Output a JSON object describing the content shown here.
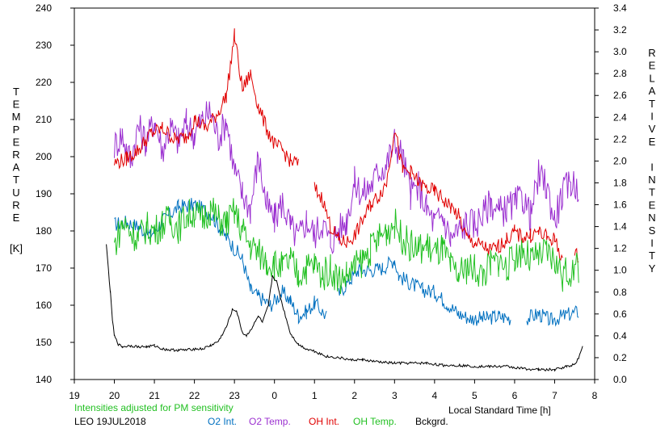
{
  "chart_data": {
    "type": "line",
    "x_ticks": [
      "19",
      "20",
      "21",
      "22",
      "23",
      "0",
      "1",
      "2",
      "3",
      "4",
      "5",
      "6",
      "7",
      "8"
    ],
    "xlabel": "Local Standard Time [h]",
    "left_axis": {
      "label_letters": [
        "T",
        "E",
        "M",
        "P",
        "E",
        "R",
        "A",
        "T",
        "U",
        "R",
        "E"
      ],
      "unit": "[K]",
      "ticks": [
        "140",
        "150",
        "160",
        "170",
        "180",
        "190",
        "200",
        "210",
        "220",
        "230",
        "240"
      ],
      "ylim": [
        140,
        240
      ]
    },
    "right_axis": {
      "label_words": [
        [
          "R",
          "E",
          "L",
          "A",
          "T",
          "I",
          "V",
          "E"
        ],
        [
          "I",
          "N",
          "T",
          "E",
          "N",
          "S",
          "I",
          "T",
          "Y"
        ]
      ],
      "ticks": [
        "0.0",
        "0.2",
        "0.4",
        "0.6",
        "0.8",
        "1.0",
        "1.2",
        "1.4",
        "1.6",
        "1.8",
        "2.0",
        "2.2",
        "2.4",
        "2.6",
        "2.8",
        "3.0",
        "3.2",
        "3.4"
      ],
      "ylim": [
        0,
        3.4
      ]
    },
    "note": "Intensities adjusted for PM sensitivity",
    "station": "LEO 19JUL2018",
    "legend_position": "bottom",
    "series": [
      {
        "name": "O2 Int.",
        "color": "#0070c0",
        "axis": "right",
        "points": [
          [
            20.0,
            1.42
          ],
          [
            20.3,
            1.44
          ],
          [
            20.6,
            1.4
          ],
          [
            20.9,
            1.32
          ],
          [
            21.2,
            1.45
          ],
          [
            21.6,
            1.58
          ],
          [
            22.0,
            1.6
          ],
          [
            22.4,
            1.52
          ],
          [
            22.7,
            1.35
          ],
          [
            22.9,
            1.25
          ],
          [
            23.2,
            1.1
          ],
          [
            23.4,
            0.82
          ],
          [
            23.6,
            0.76
          ],
          [
            23.9,
            0.68
          ],
          [
            24.2,
            0.8
          ],
          [
            24.4,
            0.72
          ],
          [
            24.6,
            0.58
          ],
          [
            24.8,
            0.62
          ],
          [
            25.0,
            0.7
          ],
          [
            25.3,
            0.58
          ],
          [
            25.5,
            null
          ],
          [
            25.6,
            0.78
          ],
          [
            25.9,
            0.92
          ],
          [
            26.1,
            1.0
          ],
          [
            26.4,
            1.0
          ],
          [
            26.7,
            1.02
          ],
          [
            27.0,
            1.1
          ],
          [
            27.1,
            0.95
          ],
          [
            27.4,
            0.88
          ],
          [
            27.7,
            0.82
          ],
          [
            28.0,
            0.8
          ],
          [
            28.3,
            0.7
          ],
          [
            28.6,
            0.6
          ],
          [
            28.9,
            0.56
          ],
          [
            29.3,
            0.56
          ],
          [
            29.6,
            0.58
          ],
          [
            29.9,
            0.56
          ],
          [
            30.1,
            null
          ],
          [
            30.3,
            0.56
          ],
          [
            30.6,
            0.6
          ],
          [
            30.9,
            0.54
          ],
          [
            31.2,
            0.58
          ],
          [
            31.6,
            0.62
          ]
        ]
      },
      {
        "name": "O2 Temp.",
        "color": "#9b30d0",
        "axis": "left",
        "points": [
          [
            20.0,
            203
          ],
          [
            20.2,
            206
          ],
          [
            20.4,
            199
          ],
          [
            20.6,
            208
          ],
          [
            20.8,
            204
          ],
          [
            21.0,
            210
          ],
          [
            21.2,
            202
          ],
          [
            21.4,
            208
          ],
          [
            21.6,
            204
          ],
          [
            21.8,
            209
          ],
          [
            22.0,
            206
          ],
          [
            22.2,
            210
          ],
          [
            22.4,
            212
          ],
          [
            22.6,
            205
          ],
          [
            22.8,
            210
          ],
          [
            23.0,
            196
          ],
          [
            23.2,
            190
          ],
          [
            23.4,
            186
          ],
          [
            23.6,
            200
          ],
          [
            23.8,
            187
          ],
          [
            24.0,
            183
          ],
          [
            24.2,
            188
          ],
          [
            24.4,
            181
          ],
          [
            24.6,
            178
          ],
          [
            24.8,
            183
          ],
          [
            25.0,
            179
          ],
          [
            25.2,
            182
          ],
          [
            25.4,
            177
          ],
          [
            25.6,
            180
          ],
          [
            25.8,
            183
          ],
          [
            26.0,
            193
          ],
          [
            26.2,
            190
          ],
          [
            26.4,
            192
          ],
          [
            26.6,
            196
          ],
          [
            26.8,
            198
          ],
          [
            27.0,
            204
          ],
          [
            27.2,
            200
          ],
          [
            27.4,
            190
          ],
          [
            27.6,
            192
          ],
          [
            27.8,
            186
          ],
          [
            28.0,
            182
          ],
          [
            28.2,
            184
          ],
          [
            28.4,
            178
          ],
          [
            28.6,
            180
          ],
          [
            28.8,
            182
          ],
          [
            29.0,
            182
          ],
          [
            29.2,
            184
          ],
          [
            29.4,
            188
          ],
          [
            29.6,
            185
          ],
          [
            29.8,
            186
          ],
          [
            30.0,
            187
          ],
          [
            30.2,
            189
          ],
          [
            30.4,
            184
          ],
          [
            30.6,
            195
          ],
          [
            30.8,
            192
          ],
          [
            31.0,
            183
          ],
          [
            31.2,
            190
          ],
          [
            31.4,
            193
          ],
          [
            31.6,
            192
          ]
        ]
      },
      {
        "name": "OH Int.",
        "color": "#e00000",
        "axis": "right",
        "points": [
          [
            20.0,
            1.98
          ],
          [
            20.3,
            2.02
          ],
          [
            20.6,
            2.1
          ],
          [
            20.9,
            2.25
          ],
          [
            21.2,
            2.3
          ],
          [
            21.5,
            2.2
          ],
          [
            21.8,
            2.22
          ],
          [
            22.0,
            2.38
          ],
          [
            22.3,
            2.3
          ],
          [
            22.6,
            2.45
          ],
          [
            22.8,
            2.6
          ],
          [
            23.0,
            3.15
          ],
          [
            23.2,
            2.65
          ],
          [
            23.4,
            2.8
          ],
          [
            23.6,
            2.5
          ],
          [
            23.8,
            2.3
          ],
          [
            24.0,
            2.15
          ],
          [
            24.2,
            2.1
          ],
          [
            24.4,
            2.0
          ],
          [
            24.6,
            1.98
          ],
          [
            24.8,
            null
          ],
          [
            25.0,
            1.75
          ],
          [
            25.2,
            1.65
          ],
          [
            25.4,
            1.4
          ],
          [
            25.6,
            1.28
          ],
          [
            25.8,
            1.25
          ],
          [
            26.0,
            1.32
          ],
          [
            26.2,
            1.45
          ],
          [
            26.4,
            1.6
          ],
          [
            26.6,
            1.68
          ],
          [
            26.8,
            1.8
          ],
          [
            27.0,
            2.3
          ],
          [
            27.2,
            1.92
          ],
          [
            27.4,
            1.9
          ],
          [
            27.6,
            1.8
          ],
          [
            27.8,
            1.75
          ],
          [
            28.0,
            1.72
          ],
          [
            28.2,
            1.65
          ],
          [
            28.4,
            1.58
          ],
          [
            28.6,
            1.5
          ],
          [
            28.8,
            1.3
          ],
          [
            29.0,
            1.25
          ],
          [
            29.2,
            1.22
          ],
          [
            29.4,
            1.18
          ],
          [
            29.6,
            1.22
          ],
          [
            29.8,
            1.28
          ],
          [
            30.0,
            1.35
          ],
          [
            30.2,
            1.3
          ],
          [
            30.4,
            1.32
          ],
          [
            30.6,
            1.35
          ],
          [
            30.8,
            1.3
          ],
          [
            31.0,
            1.28
          ],
          [
            31.2,
            1.1
          ],
          [
            31.3,
            null
          ],
          [
            31.5,
            1.12
          ],
          [
            31.6,
            1.15
          ]
        ]
      },
      {
        "name": "OH Temp.",
        "color": "#22c022",
        "axis": "left",
        "points": [
          [
            20.0,
            176
          ],
          [
            20.2,
            182
          ],
          [
            20.4,
            180
          ],
          [
            20.6,
            178
          ],
          [
            20.8,
            181
          ],
          [
            21.0,
            180
          ],
          [
            21.2,
            182
          ],
          [
            21.4,
            183
          ],
          [
            21.6,
            181
          ],
          [
            21.8,
            184
          ],
          [
            22.0,
            185
          ],
          [
            22.2,
            183
          ],
          [
            22.4,
            186
          ],
          [
            22.6,
            183
          ],
          [
            22.8,
            182
          ],
          [
            23.0,
            185
          ],
          [
            23.2,
            180
          ],
          [
            23.4,
            176
          ],
          [
            23.6,
            174
          ],
          [
            23.8,
            172
          ],
          [
            24.0,
            171
          ],
          [
            24.2,
            170
          ],
          [
            24.4,
            172
          ],
          [
            24.6,
            168
          ],
          [
            24.8,
            170
          ],
          [
            25.0,
            171
          ],
          [
            25.2,
            168
          ],
          [
            25.4,
            170
          ],
          [
            25.6,
            167
          ],
          [
            25.8,
            168
          ],
          [
            26.0,
            170
          ],
          [
            26.2,
            172
          ],
          [
            26.4,
            175
          ],
          [
            26.6,
            178
          ],
          [
            26.8,
            180
          ],
          [
            27.0,
            182
          ],
          [
            27.2,
            178
          ],
          [
            27.4,
            176
          ],
          [
            27.6,
            175
          ],
          [
            27.8,
            176
          ],
          [
            28.0,
            174
          ],
          [
            28.2,
            175
          ],
          [
            28.4,
            170
          ],
          [
            28.6,
            168
          ],
          [
            28.8,
            170
          ],
          [
            29.0,
            170
          ],
          [
            29.2,
            168
          ],
          [
            29.4,
            171
          ],
          [
            29.6,
            172
          ],
          [
            29.8,
            170
          ],
          [
            30.0,
            173
          ],
          [
            30.2,
            175
          ],
          [
            30.4,
            172
          ],
          [
            30.6,
            173
          ],
          [
            30.8,
            174
          ],
          [
            31.0,
            172
          ],
          [
            31.2,
            168
          ],
          [
            31.4,
            169
          ],
          [
            31.6,
            170
          ]
        ]
      },
      {
        "name": "Bckgrd.",
        "color": "#000000",
        "axis": "right",
        "points": [
          [
            19.8,
            1.23
          ],
          [
            19.9,
            0.8
          ],
          [
            19.95,
            0.55
          ],
          [
            20.0,
            0.4
          ],
          [
            20.1,
            0.32
          ],
          [
            20.2,
            0.3
          ],
          [
            20.4,
            0.31
          ],
          [
            20.6,
            0.3
          ],
          [
            20.8,
            0.3
          ],
          [
            21.0,
            0.31
          ],
          [
            21.2,
            0.28
          ],
          [
            21.4,
            0.27
          ],
          [
            21.6,
            0.27
          ],
          [
            21.8,
            0.27
          ],
          [
            22.0,
            0.28
          ],
          [
            22.2,
            0.28
          ],
          [
            22.4,
            0.31
          ],
          [
            22.6,
            0.35
          ],
          [
            22.8,
            0.48
          ],
          [
            22.95,
            0.64
          ],
          [
            23.05,
            0.63
          ],
          [
            23.2,
            0.43
          ],
          [
            23.3,
            0.4
          ],
          [
            23.45,
            0.48
          ],
          [
            23.6,
            0.58
          ],
          [
            23.7,
            0.52
          ],
          [
            23.85,
            0.68
          ],
          [
            23.95,
            0.95
          ],
          [
            24.05,
            0.9
          ],
          [
            24.2,
            0.68
          ],
          [
            24.4,
            0.42
          ],
          [
            24.6,
            0.32
          ],
          [
            24.8,
            0.28
          ],
          [
            25.0,
            0.26
          ],
          [
            25.3,
            0.21
          ],
          [
            25.6,
            0.2
          ],
          [
            25.9,
            0.18
          ],
          [
            26.2,
            0.18
          ],
          [
            26.6,
            0.16
          ],
          [
            27.0,
            0.15
          ],
          [
            27.4,
            0.15
          ],
          [
            27.8,
            0.15
          ],
          [
            28.2,
            0.13
          ],
          [
            28.6,
            0.13
          ],
          [
            29.0,
            0.12
          ],
          [
            29.4,
            0.12
          ],
          [
            29.8,
            0.12
          ],
          [
            30.2,
            0.1
          ],
          [
            30.6,
            0.09
          ],
          [
            31.0,
            0.09
          ],
          [
            31.3,
            0.12
          ],
          [
            31.5,
            0.14
          ],
          [
            31.6,
            0.2
          ],
          [
            31.7,
            0.3
          ]
        ]
      }
    ]
  }
}
